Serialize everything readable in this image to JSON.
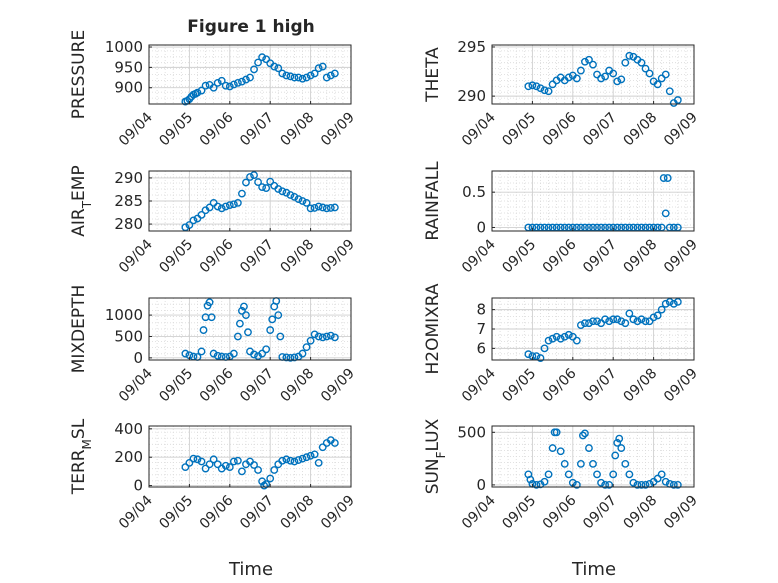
{
  "figure_title": "Figure 1 high",
  "shared_x_label": "Time",
  "colors": {
    "marker": "#0072BD",
    "grid": "#d9d9d9",
    "axes": "#262626",
    "background": "#ffffff"
  },
  "chart_data": [
    {
      "type": "scatter",
      "ylabel": "PRESSURE",
      "ylim": [
        860,
        1005
      ],
      "yticks": [
        900,
        950,
        1000
      ],
      "xticks": [
        "09/04",
        "09/05",
        "09/06",
        "09/07",
        "09/08",
        "09/09"
      ],
      "xlim": [
        0,
        5
      ],
      "grid": true,
      "series": [
        {
          "x": [
            0.9,
            0.95,
            1.0,
            1.05,
            1.1,
            1.15,
            1.2,
            1.3,
            1.4,
            1.5,
            1.6,
            1.7,
            1.8,
            1.9,
            2.0,
            2.1,
            2.2,
            2.3,
            2.4,
            2.5,
            2.6,
            2.7,
            2.8,
            2.9,
            3.0,
            3.1,
            3.2,
            3.3,
            3.4,
            3.5,
            3.6,
            3.7,
            3.8,
            3.9,
            4.0,
            4.1,
            4.2,
            4.3,
            4.4,
            4.5,
            4.6
          ],
          "y": [
            866,
            868,
            872,
            878,
            883,
            885,
            888,
            893,
            905,
            907,
            900,
            912,
            917,
            905,
            903,
            908,
            912,
            915,
            920,
            925,
            945,
            962,
            975,
            970,
            960,
            952,
            948,
            935,
            930,
            928,
            925,
            925,
            922,
            925,
            930,
            935,
            948,
            952,
            925,
            930,
            935
          ]
        }
      ]
    },
    {
      "type": "scatter",
      "ylabel": "THETA",
      "ylim": [
        289.2,
        295.2
      ],
      "yticks": [
        290,
        295
      ],
      "xticks": [
        "09/04",
        "09/05",
        "09/06",
        "09/07",
        "09/08",
        "09/09"
      ],
      "xlim": [
        0,
        5
      ],
      "grid": true,
      "series": [
        {
          "x": [
            0.9,
            1.0,
            1.1,
            1.2,
            1.3,
            1.4,
            1.5,
            1.6,
            1.7,
            1.8,
            1.9,
            2.0,
            2.1,
            2.2,
            2.3,
            2.4,
            2.5,
            2.6,
            2.7,
            2.8,
            2.9,
            3.0,
            3.1,
            3.2,
            3.3,
            3.4,
            3.5,
            3.6,
            3.7,
            3.8,
            3.9,
            4.0,
            4.1,
            4.2,
            4.3,
            4.4,
            4.5,
            4.6
          ],
          "y": [
            291.0,
            291.1,
            291.0,
            290.8,
            290.6,
            290.5,
            291.2,
            291.6,
            291.9,
            291.6,
            291.9,
            292.1,
            291.8,
            292.6,
            293.5,
            293.7,
            293.2,
            292.2,
            291.8,
            292.0,
            292.6,
            292.3,
            291.5,
            291.7,
            293.4,
            294.1,
            294.0,
            293.7,
            293.4,
            292.8,
            292.3,
            291.5,
            291.2,
            291.8,
            292.2,
            290.5,
            289.3,
            289.6
          ]
        }
      ]
    },
    {
      "type": "scatter",
      "ylabel": "AIR_TEMP",
      "ylim": [
        278.5,
        291.5
      ],
      "yticks": [
        280,
        285,
        290
      ],
      "xticks": [
        "09/04",
        "09/05",
        "09/06",
        "09/07",
        "09/08",
        "09/09"
      ],
      "xlim": [
        0,
        5
      ],
      "grid": true,
      "series": [
        {
          "x": [
            0.9,
            1.0,
            1.1,
            1.2,
            1.3,
            1.4,
            1.5,
            1.6,
            1.7,
            1.8,
            1.9,
            2.0,
            2.1,
            2.2,
            2.3,
            2.4,
            2.5,
            2.6,
            2.7,
            2.8,
            2.9,
            3.0,
            3.1,
            3.2,
            3.3,
            3.4,
            3.5,
            3.6,
            3.7,
            3.8,
            3.9,
            4.0,
            4.1,
            4.2,
            4.3,
            4.4,
            4.5,
            4.6
          ],
          "y": [
            279.3,
            279.8,
            280.8,
            281.2,
            282.0,
            283.0,
            283.6,
            284.6,
            283.8,
            283.4,
            283.8,
            284.1,
            284.3,
            284.6,
            286.6,
            289.0,
            290.2,
            290.6,
            289.1,
            288.0,
            287.8,
            289.2,
            288.3,
            287.6,
            287.1,
            286.8,
            286.3,
            285.9,
            285.4,
            285.0,
            284.6,
            283.4,
            283.5,
            283.8,
            283.6,
            283.4,
            283.5,
            283.6
          ]
        }
      ]
    },
    {
      "type": "scatter",
      "ylabel": "RAINFALL",
      "ylim": [
        -0.05,
        0.8
      ],
      "yticks": [
        0,
        0.5
      ],
      "xticks": [
        "09/04",
        "09/05",
        "09/06",
        "09/07",
        "09/08",
        "09/09"
      ],
      "xlim": [
        0,
        5
      ],
      "grid": true,
      "series": [
        {
          "x": [
            0.9,
            1.0,
            1.1,
            1.2,
            1.3,
            1.4,
            1.5,
            1.6,
            1.7,
            1.8,
            1.9,
            2.0,
            2.1,
            2.2,
            2.3,
            2.4,
            2.5,
            2.6,
            2.7,
            2.8,
            2.9,
            3.0,
            3.1,
            3.2,
            3.3,
            3.4,
            3.5,
            3.6,
            3.7,
            3.8,
            3.9,
            4.0,
            4.1,
            4.2,
            4.25,
            4.3,
            4.35,
            4.4,
            4.5,
            4.6
          ],
          "y": [
            0,
            0,
            0,
            0,
            0,
            0,
            0,
            0,
            0,
            0,
            0,
            0,
            0,
            0,
            0,
            0,
            0,
            0,
            0,
            0,
            0,
            0,
            0,
            0,
            0,
            0,
            0,
            0,
            0,
            0,
            0,
            0,
            0,
            0,
            0.7,
            0.2,
            0.7,
            0,
            0,
            0
          ]
        }
      ]
    },
    {
      "type": "scatter",
      "ylabel": "MIXDEPTH",
      "ylim": [
        -50,
        1400
      ],
      "yticks": [
        0,
        500,
        1000
      ],
      "xticks": [
        "09/04",
        "09/05",
        "09/06",
        "09/07",
        "09/08",
        "09/09"
      ],
      "xlim": [
        0,
        5
      ],
      "grid": true,
      "series": [
        {
          "x": [
            0.9,
            1.0,
            1.1,
            1.2,
            1.3,
            1.35,
            1.4,
            1.45,
            1.5,
            1.55,
            1.6,
            1.7,
            1.8,
            1.9,
            2.0,
            2.1,
            2.2,
            2.25,
            2.3,
            2.35,
            2.4,
            2.45,
            2.5,
            2.6,
            2.7,
            2.8,
            2.9,
            3.0,
            3.05,
            3.1,
            3.15,
            3.2,
            3.25,
            3.3,
            3.4,
            3.5,
            3.6,
            3.7,
            3.8,
            3.9,
            4.0,
            4.1,
            4.2,
            4.3,
            4.4,
            4.5,
            4.6
          ],
          "y": [
            100,
            60,
            30,
            20,
            150,
            650,
            950,
            1220,
            1300,
            950,
            100,
            50,
            30,
            20,
            30,
            100,
            500,
            800,
            1100,
            1200,
            1000,
            600,
            150,
            80,
            40,
            100,
            200,
            650,
            900,
            1200,
            1330,
            1000,
            500,
            20,
            10,
            0,
            10,
            30,
            100,
            250,
            400,
            550,
            500,
            480,
            500,
            520,
            480
          ]
        }
      ]
    },
    {
      "type": "scatter",
      "ylabel": "H2OMIXRA",
      "ylim": [
        5.4,
        8.6
      ],
      "yticks": [
        6,
        7,
        8
      ],
      "xticks": [
        "09/04",
        "09/05",
        "09/06",
        "09/07",
        "09/08",
        "09/09"
      ],
      "xlim": [
        0,
        5
      ],
      "grid": true,
      "series": [
        {
          "x": [
            0.9,
            1.0,
            1.1,
            1.2,
            1.3,
            1.4,
            1.5,
            1.6,
            1.7,
            1.8,
            1.9,
            2.0,
            2.1,
            2.2,
            2.3,
            2.4,
            2.5,
            2.6,
            2.7,
            2.8,
            2.9,
            3.0,
            3.1,
            3.2,
            3.3,
            3.4,
            3.5,
            3.6,
            3.7,
            3.8,
            3.9,
            4.0,
            4.1,
            4.2,
            4.3,
            4.4,
            4.5,
            4.6
          ],
          "y": [
            5.7,
            5.6,
            5.6,
            5.5,
            6.0,
            6.4,
            6.5,
            6.6,
            6.5,
            6.6,
            6.7,
            6.6,
            6.4,
            7.2,
            7.3,
            7.3,
            7.4,
            7.4,
            7.3,
            7.5,
            7.4,
            7.5,
            7.5,
            7.4,
            7.3,
            7.8,
            7.5,
            7.4,
            7.5,
            7.4,
            7.4,
            7.6,
            7.7,
            8.0,
            8.3,
            8.4,
            8.3,
            8.4
          ]
        }
      ]
    },
    {
      "type": "scatter",
      "ylabel": "TERR_MSL",
      "ylim": [
        -10,
        420
      ],
      "yticks": [
        0,
        200,
        400
      ],
      "xticks": [
        "09/04",
        "09/05",
        "09/06",
        "09/07",
        "09/08",
        "09/09"
      ],
      "xlim": [
        0,
        5
      ],
      "grid": true,
      "series": [
        {
          "x": [
            0.9,
            1.0,
            1.1,
            1.2,
            1.3,
            1.4,
            1.5,
            1.6,
            1.7,
            1.8,
            1.9,
            2.0,
            2.1,
            2.2,
            2.3,
            2.4,
            2.5,
            2.6,
            2.7,
            2.8,
            2.85,
            2.9,
            3.0,
            3.1,
            3.2,
            3.3,
            3.4,
            3.5,
            3.6,
            3.7,
            3.8,
            3.9,
            4.0,
            4.1,
            4.2,
            4.3,
            4.4,
            4.5,
            4.6
          ],
          "y": [
            130,
            160,
            190,
            185,
            170,
            120,
            150,
            185,
            150,
            120,
            140,
            130,
            170,
            175,
            100,
            150,
            170,
            145,
            110,
            30,
            0,
            10,
            50,
            110,
            150,
            175,
            185,
            175,
            170,
            180,
            190,
            200,
            210,
            220,
            160,
            270,
            300,
            320,
            300
          ]
        }
      ]
    },
    {
      "type": "scatter",
      "ylabel": "SUN_FLUX",
      "ylim": [
        -20,
        560
      ],
      "yticks": [
        0,
        500
      ],
      "xticks": [
        "09/04",
        "09/05",
        "09/06",
        "09/07",
        "09/08",
        "09/09"
      ],
      "xlim": [
        0,
        5
      ],
      "grid": true,
      "series": [
        {
          "x": [
            0.9,
            0.95,
            1.0,
            1.1,
            1.2,
            1.3,
            1.4,
            1.5,
            1.55,
            1.6,
            1.7,
            1.8,
            1.9,
            2.0,
            2.1,
            2.2,
            2.25,
            2.3,
            2.4,
            2.5,
            2.6,
            2.7,
            2.8,
            2.9,
            3.0,
            3.05,
            3.1,
            3.15,
            3.2,
            3.3,
            3.4,
            3.5,
            3.6,
            3.7,
            3.8,
            3.9,
            4.0,
            4.1,
            4.2,
            4.3,
            4.4,
            4.5,
            4.6
          ],
          "y": [
            100,
            50,
            10,
            0,
            5,
            30,
            100,
            350,
            500,
            500,
            320,
            200,
            100,
            20,
            0,
            200,
            470,
            490,
            350,
            200,
            100,
            20,
            0,
            0,
            100,
            280,
            400,
            440,
            350,
            200,
            100,
            20,
            0,
            0,
            0,
            10,
            30,
            60,
            100,
            30,
            10,
            0,
            0
          ]
        }
      ]
    }
  ]
}
